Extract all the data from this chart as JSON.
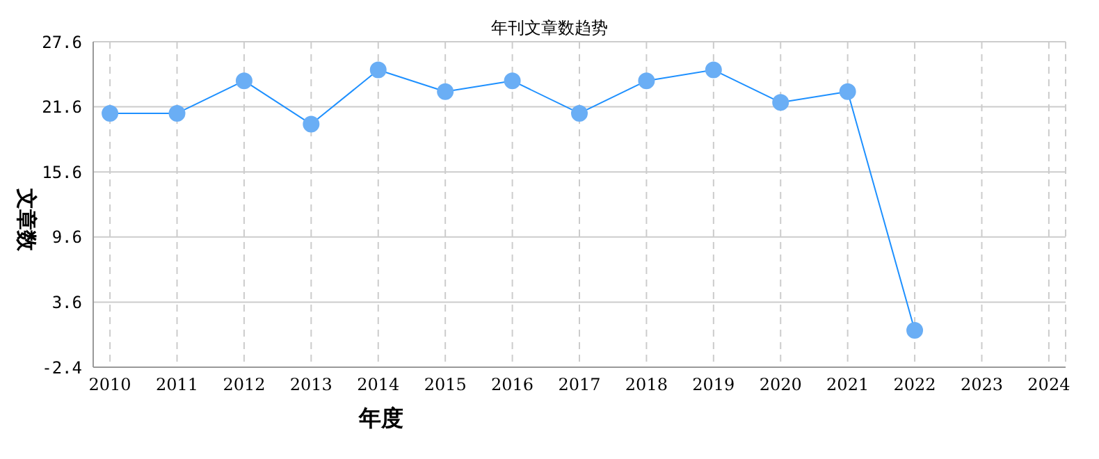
{
  "chart_data": {
    "type": "line",
    "title": "年刊文章数趋势",
    "xlabel": "年度",
    "ylabel": "文章数",
    "categories": [
      "2010",
      "2011",
      "2012",
      "2013",
      "2014",
      "2015",
      "2016",
      "2017",
      "2018",
      "2019",
      "2020",
      "2021",
      "2022",
      "2023",
      "2024"
    ],
    "series": [
      {
        "color": "#1e90ff",
        "values": [
          21,
          21,
          24,
          20,
          25,
          23,
          24,
          21,
          24,
          25,
          22,
          23,
          1,
          null,
          null
        ]
      }
    ],
    "ylim": [
      -2.4,
      27.6
    ],
    "yticks": [
      -2.4,
      3.6,
      9.6,
      15.6,
      21.6,
      27.6
    ],
    "grid": true,
    "marker": "circle",
    "legend": false
  }
}
